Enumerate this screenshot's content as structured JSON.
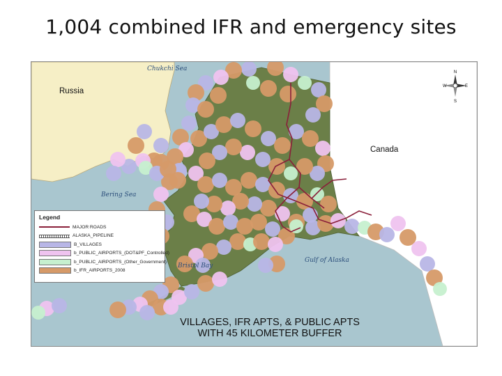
{
  "slide": {
    "title": "1,004 combined IFR and emergency sites"
  },
  "map": {
    "labels": {
      "chukchi_sea": "Chukchi Sea",
      "bering_sea": "Bering Sea",
      "bristol_bay": "Bristol Bay",
      "gulf_of_alaska": "Gulf of Alaska",
      "russia": "Russia",
      "canada": "Canada"
    },
    "compass": {
      "n": "N",
      "s": "S",
      "e": "E",
      "w": "W"
    },
    "caption": {
      "line1": "VILLAGES, IFR APTS, & PUBLIC APTS",
      "line2": "WITH 45 KILOMETER BUFFER"
    },
    "colors": {
      "villages": "#b8b6e6",
      "public_dot": "#efc3ef",
      "public_other": "#c6f0cf",
      "ifr": "#d69a68",
      "roads": "#8a1f3a",
      "water": "#a9c6cf",
      "russia_land": "#f6efc6",
      "canada_land": "#ffffff",
      "alaska_land": "#6b7f48"
    }
  },
  "legend": {
    "title": "Legend",
    "items": [
      {
        "label": "MAJOR ROADS",
        "symbol": "line-road",
        "color": "#8a1f3a"
      },
      {
        "label": "ALASKA_PIPELINE",
        "symbol": "line-pipe",
        "color": "#555555"
      },
      {
        "label": "B_VILLAGES",
        "symbol": "box",
        "color": "#b8b6e6"
      },
      {
        "label": "b_PUBLIC_AIRPORTS_(DOT&PF_Controlled)",
        "symbol": "box",
        "color": "#efc3ef"
      },
      {
        "label": "b_PUBLIC_AIRPORTS_(Other_Government)",
        "symbol": "box",
        "color": "#c6f0cf"
      },
      {
        "label": "b_IFR_AIRPORTS_2008",
        "symbol": "box",
        "color": "#d69a68"
      }
    ]
  }
}
